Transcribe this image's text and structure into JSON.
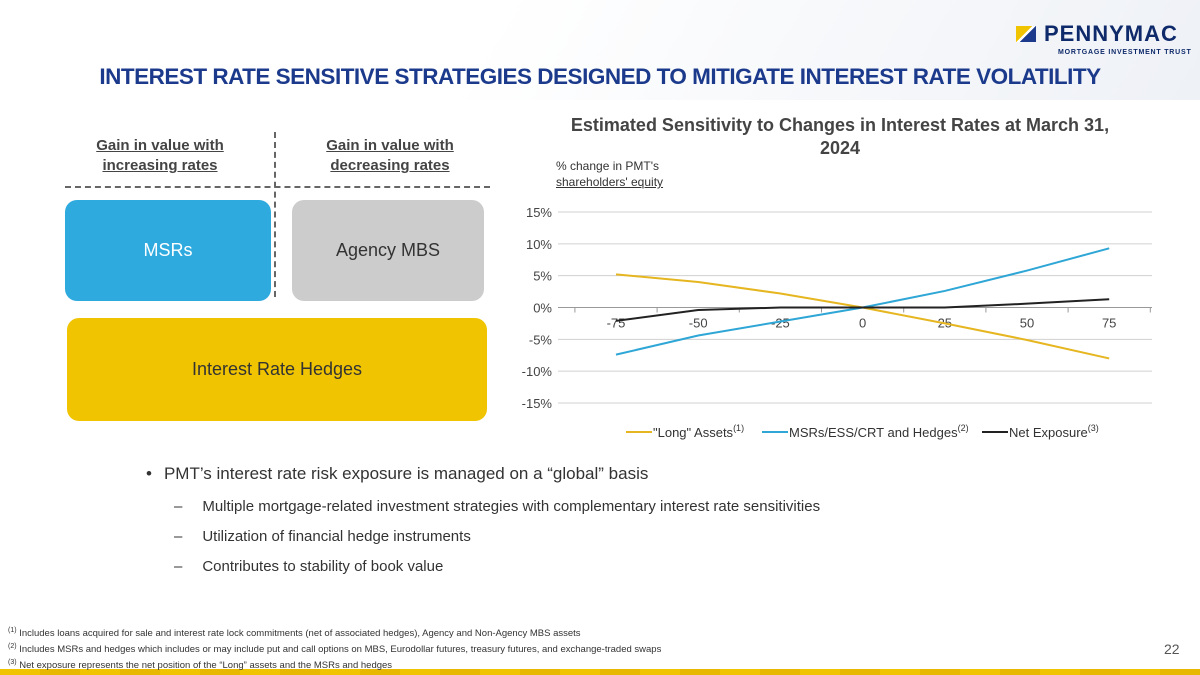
{
  "logo": {
    "name": "PENNYMAC",
    "sub": "MORTGAGE INVESTMENT TRUST"
  },
  "title": "INTEREST RATE SENSITIVE STRATEGIES DESIGNED TO MITIGATE INTEREST RATE VOLATILITY",
  "left": {
    "col1": "Gain in value with increasing rates",
    "col2": "Gain in value with decreasing rates",
    "box_msrs": "MSRs",
    "box_agency": "Agency MBS",
    "box_hedges": "Interest Rate Hedges",
    "colors": {
      "msrs": "#2eaadf",
      "agency": "#cccccc",
      "hedges": "#f0c400"
    }
  },
  "chart_data": {
    "type": "line",
    "title": "Estimated Sensitivity to Changes in Interest Rates at March 31, 2024",
    "ylabel_line1": "% change in PMT's",
    "ylabel_line2": "shareholders' equity",
    "xlabel": "",
    "categories": [
      "-75",
      "-50",
      "-25",
      "0",
      "25",
      "50",
      "75"
    ],
    "yticks": [
      "15%",
      "10%",
      "5%",
      "0%",
      "-5%",
      "-10%",
      "-15%"
    ],
    "ylim": [
      -15,
      15
    ],
    "grid": true,
    "legend": "bottom",
    "series": [
      {
        "name": "\"Long\" Assets",
        "sup": "(1)",
        "color": "#e6b620",
        "values": [
          5.2,
          4.0,
          2.2,
          0,
          -2.5,
          -5.1,
          -8.0
        ]
      },
      {
        "name": "MSRs/ESS/CRT and Hedges",
        "sup": "(2)",
        "color": "#2ea6d6",
        "values": [
          -7.4,
          -4.4,
          -2.2,
          0,
          2.6,
          5.8,
          9.3
        ]
      },
      {
        "name": "Net Exposure",
        "sup": "(3)",
        "color": "#222222",
        "values": [
          -2.1,
          -0.4,
          0,
          0,
          0,
          0.6,
          1.3
        ]
      }
    ]
  },
  "bullets": {
    "main": "PMT’s interest rate risk exposure is managed on a “global” basis",
    "subs": [
      "Multiple mortgage-related investment strategies with complementary interest rate sensitivities",
      "Utilization of financial hedge instruments",
      "Contributes to stability of book value"
    ],
    "bullet": "•",
    "dash": "–"
  },
  "footnotes": [
    {
      "num": "(1)",
      "text": "Includes loans acquired for sale and interest rate lock commitments (net of associated hedges), Agency and Non-Agency MBS assets"
    },
    {
      "num": "(2)",
      "text": "Includes MSRs and hedges which includes or may include put and call options on MBS, Eurodollar futures, treasury futures, and exchange-traded swaps"
    },
    {
      "num": "(3)",
      "text": "Net exposure represents the net position of the “Long” assets and the MSRs and hedges"
    }
  ],
  "page_number": "22"
}
